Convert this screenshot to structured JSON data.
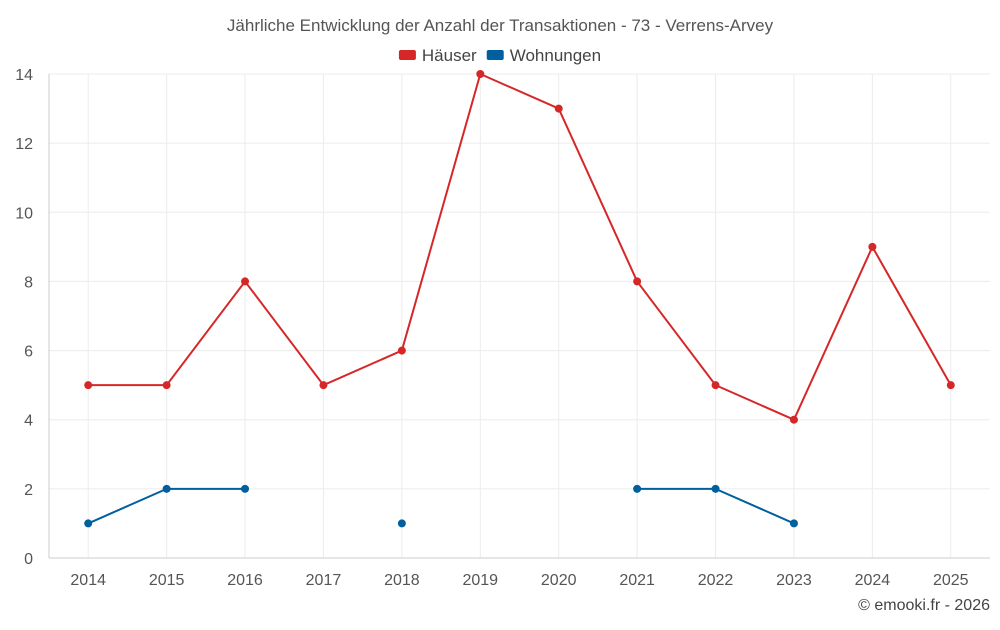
{
  "chart_data": {
    "type": "line",
    "title": "Jährliche Entwicklung der Anzahl der Transaktionen - 73 - Verrens-Arvey",
    "xlabel": "",
    "ylabel": "",
    "categories": [
      "2014",
      "2015",
      "2016",
      "2017",
      "2018",
      "2019",
      "2020",
      "2021",
      "2022",
      "2023",
      "2024",
      "2025"
    ],
    "ylim": [
      0,
      14
    ],
    "yticks": [
      0,
      2,
      4,
      6,
      8,
      10,
      12,
      14
    ],
    "grid": true,
    "legend_position": "top-center",
    "series": [
      {
        "name": "Häuser",
        "color": "#d62728",
        "values": [
          5,
          5,
          8,
          5,
          6,
          14,
          13,
          8,
          5,
          4,
          9,
          5
        ]
      },
      {
        "name": "Wohnungen",
        "color": "#005f9e",
        "values": [
          1,
          2,
          2,
          null,
          1,
          null,
          null,
          2,
          2,
          1,
          null,
          null
        ]
      }
    ]
  },
  "credit": "© emooki.fr - 2026"
}
